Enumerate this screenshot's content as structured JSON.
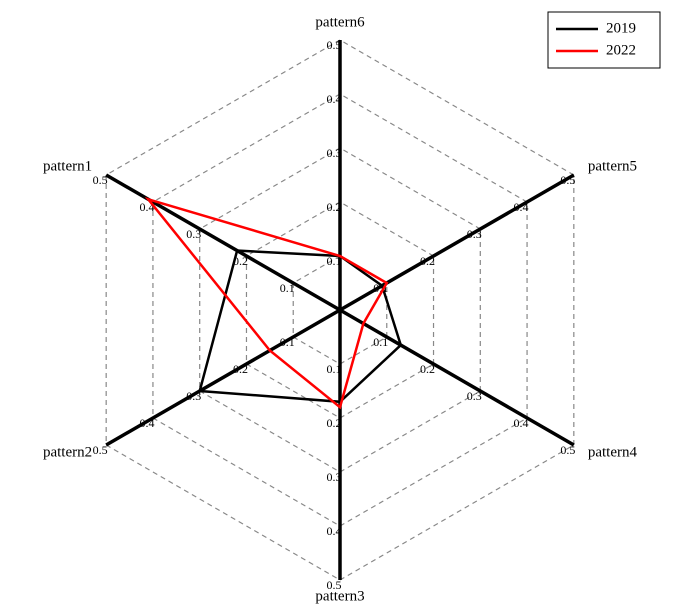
{
  "chart_data": {
    "type": "radar",
    "categories": [
      "pattern1",
      "pattern2",
      "pattern3",
      "pattern4",
      "pattern5",
      "pattern6"
    ],
    "series": [
      {
        "name": "2019",
        "color": "#000000",
        "values": [
          0.22,
          0.3,
          0.17,
          0.13,
          0.09,
          0.1
        ]
      },
      {
        "name": "2022",
        "color": "#ff0000",
        "values": [
          0.41,
          0.15,
          0.18,
          0.05,
          0.1,
          0.1
        ]
      }
    ],
    "rlim": [
      0,
      0.5
    ],
    "rticks": [
      0.1,
      0.2,
      0.3,
      0.4,
      0.5
    ],
    "grid": true,
    "legend": "upper right"
  }
}
